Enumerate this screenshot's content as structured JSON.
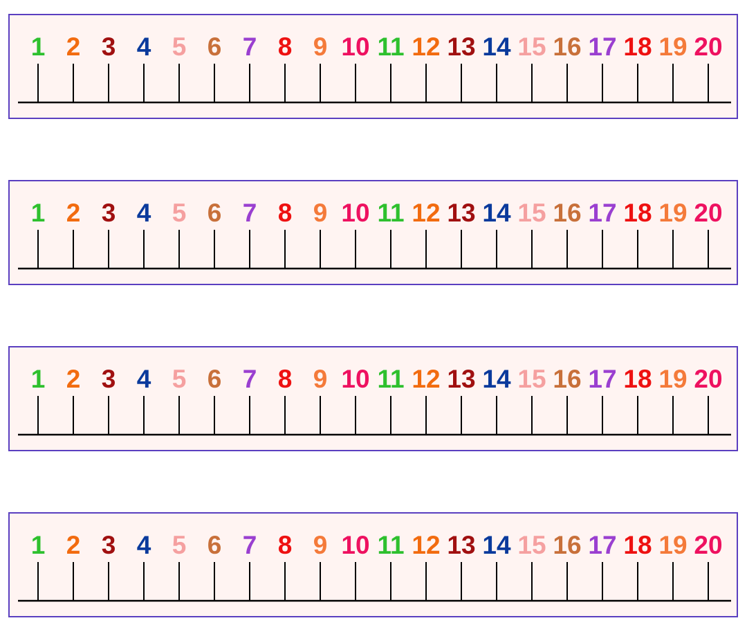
{
  "number_lines": [
    {
      "numbers": [
        "1",
        "2",
        "3",
        "4",
        "5",
        "6",
        "7",
        "8",
        "9",
        "10",
        "11",
        "12",
        "13",
        "14",
        "15",
        "16",
        "17",
        "18",
        "19",
        "20"
      ]
    },
    {
      "numbers": [
        "1",
        "2",
        "3",
        "4",
        "5",
        "6",
        "7",
        "8",
        "9",
        "10",
        "11",
        "12",
        "13",
        "14",
        "15",
        "16",
        "17",
        "18",
        "19",
        "20"
      ]
    },
    {
      "numbers": [
        "1",
        "2",
        "3",
        "4",
        "5",
        "6",
        "7",
        "8",
        "9",
        "10",
        "11",
        "12",
        "13",
        "14",
        "15",
        "16",
        "17",
        "18",
        "19",
        "20"
      ]
    },
    {
      "numbers": [
        "1",
        "2",
        "3",
        "4",
        "5",
        "6",
        "7",
        "8",
        "9",
        "10",
        "11",
        "12",
        "13",
        "14",
        "15",
        "16",
        "17",
        "18",
        "19",
        "20"
      ]
    }
  ],
  "colors": {
    "frame": "#5a3fc0",
    "background": "#fff4f2",
    "line": "#000000",
    "number_colors": [
      "#2ec02e",
      "#f26b0f",
      "#a01010",
      "#0a3a9c",
      "#f5a0a0",
      "#c8703a",
      "#9a3fd0",
      "#ee1111",
      "#f47a3a",
      "#ee1160",
      "#2ec02e",
      "#f26b0f",
      "#a01010",
      "#0a3a9c",
      "#f5a0a0",
      "#c8703a",
      "#9a3fd0",
      "#ee1111",
      "#f47a3a",
      "#ee1160"
    ]
  }
}
